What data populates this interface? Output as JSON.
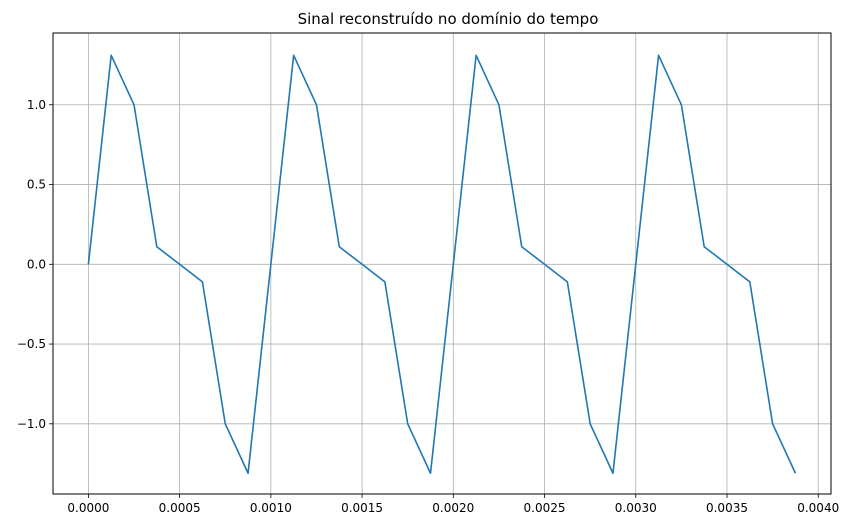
{
  "chart_data": {
    "type": "line",
    "title": "Sinal reconstruído no domínio do tempo",
    "xlabel": "",
    "ylabel": "",
    "xlim": [
      -0.000194,
      0.00407
    ],
    "ylim": [
      -1.44,
      1.45
    ],
    "xticks": [
      0.0,
      0.0005,
      0.001,
      0.0015,
      0.002,
      0.0025,
      0.003,
      0.0035,
      0.004
    ],
    "xtick_labels": [
      "0.0000",
      "0.0005",
      "0.0010",
      "0.0015",
      "0.0020",
      "0.0025",
      "0.0030",
      "0.0035",
      "0.0040"
    ],
    "yticks": [
      -1.0,
      -0.5,
      0.0,
      0.5,
      1.0
    ],
    "ytick_labels": [
      "−1.0",
      "−0.5",
      "0.0",
      "0.5",
      "1.0"
    ],
    "grid": true,
    "line_color": "#1f77b4",
    "series": [
      {
        "x": [
          0.0,
          0.000125,
          0.00025,
          0.000375,
          0.0005,
          0.000625,
          0.00075,
          0.000875,
          0.001,
          0.001125,
          0.00125,
          0.001375,
          0.0015,
          0.001625,
          0.00175,
          0.001875,
          0.002,
          0.002125,
          0.00225,
          0.002375,
          0.0025,
          0.002625,
          0.00275,
          0.002875,
          0.003,
          0.003125,
          0.00325,
          0.003375,
          0.0035,
          0.003625,
          0.00375,
          0.003875
        ],
        "y": [
          0.0,
          1.31,
          1.0,
          0.11,
          0.0,
          -0.11,
          -1.0,
          -1.31,
          0.0,
          1.31,
          1.0,
          0.11,
          0.0,
          -0.11,
          -1.0,
          -1.31,
          0.0,
          1.31,
          1.0,
          0.11,
          0.0,
          -0.11,
          -1.0,
          -1.31,
          0.0,
          1.31,
          1.0,
          0.11,
          0.0,
          -0.11,
          -1.0,
          -1.31
        ]
      }
    ]
  }
}
